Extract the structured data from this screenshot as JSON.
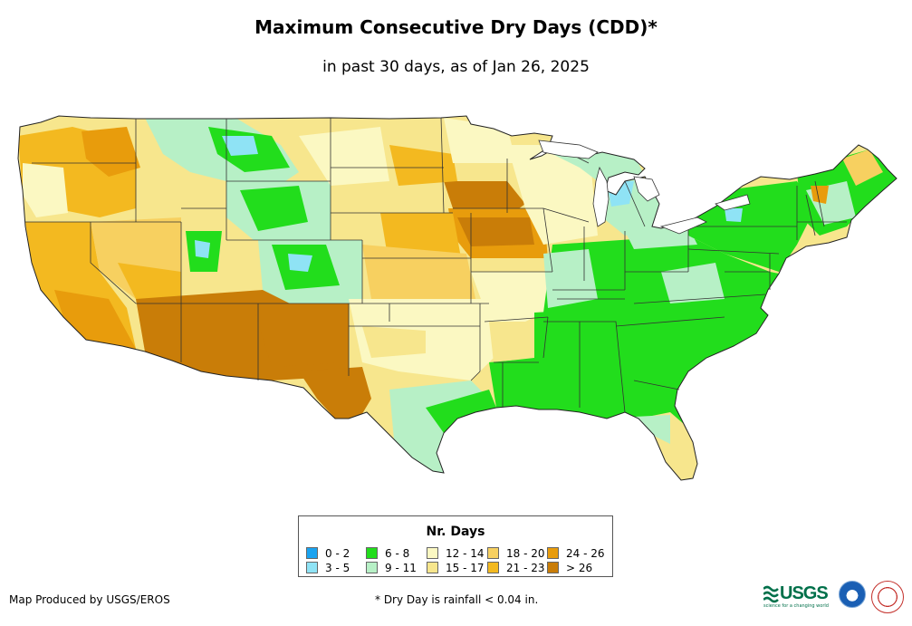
{
  "title": "Maximum Consecutive Dry Days (CDD)*",
  "subtitle": "in past 30 days, as of Jan 26, 2025",
  "legend": {
    "title": "Nr. Days",
    "items": [
      {
        "label": "0 - 2",
        "color": "#1aa3f0"
      },
      {
        "label": "3 - 5",
        "color": "#8fe3f5"
      },
      {
        "label": "6 - 8",
        "color": "#22dd1c"
      },
      {
        "label": "9 - 11",
        "color": "#b7f0c6"
      },
      {
        "label": "12 - 14",
        "color": "#fbf8c2"
      },
      {
        "label": "15 - 17",
        "color": "#f7e68d"
      },
      {
        "label": "18 - 20",
        "color": "#f7d060"
      },
      {
        "label": "21 - 23",
        "color": "#f3b920"
      },
      {
        "label": "24 - 26",
        "color": "#e89c0c"
      },
      {
        "label": "> 26",
        "color": "#c97d08"
      }
    ]
  },
  "credit": "Map Produced by USGS/EROS",
  "footnote": "* Dry Day is rainfall < 0.04 in.",
  "logos": {
    "usgs": "USGS",
    "usgs_tagline": "science for a changing world"
  }
}
